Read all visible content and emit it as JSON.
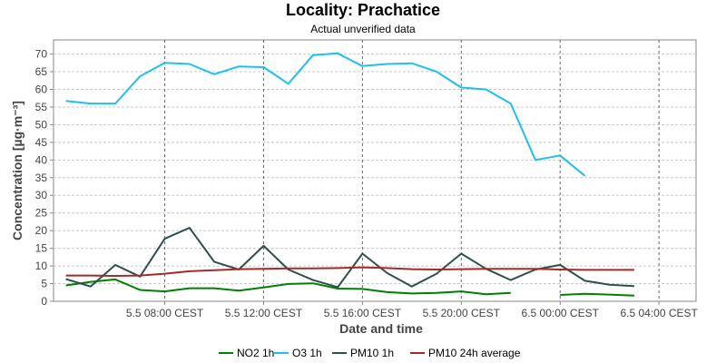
{
  "chart_data": {
    "type": "line",
    "title": "Locality: Prachatice",
    "subtitle": "Actual unverified data",
    "xlabel": "Date and time",
    "ylabel": "Concentration [µg·m⁻³]",
    "ylim": [
      0,
      74
    ],
    "y_ticks": [
      0,
      5,
      10,
      15,
      20,
      25,
      30,
      35,
      40,
      45,
      50,
      55,
      60,
      65,
      70
    ],
    "x_tick_labels": [
      "5.5 08:00 CEST",
      "5.5 12:00 CEST",
      "5.5 16:00 CEST",
      "5.5 20:00 CEST",
      "6.5 00:00 CEST",
      "6.5 04:00 CEST"
    ],
    "x_tick_hours": [
      8,
      12,
      16,
      20,
      24,
      28
    ],
    "xlim_hours": [
      3.5,
      29.5
    ],
    "grid": true,
    "legend_position": "bottom",
    "series": [
      {
        "name": "NO2 1h",
        "color": "#008000",
        "points": [
          [
            4,
            4.5
          ],
          [
            5,
            5.5
          ],
          [
            6,
            6.2
          ],
          [
            7,
            3.2
          ],
          [
            8,
            2.8
          ],
          [
            9,
            3.7
          ],
          [
            10,
            3.7
          ],
          [
            11,
            3.0
          ],
          [
            12,
            3.9
          ],
          [
            13,
            4.9
          ],
          [
            14,
            5.1
          ],
          [
            15,
            3.6
          ],
          [
            16,
            3.5
          ],
          [
            17,
            2.6
          ],
          [
            18,
            2.2
          ],
          [
            19,
            2.4
          ],
          [
            20,
            2.8
          ],
          [
            21,
            2.0
          ],
          [
            22,
            2.4
          ],
          [
            null,
            null
          ],
          [
            24,
            1.8
          ],
          [
            25,
            2.1
          ],
          [
            26,
            1.9
          ],
          [
            27,
            1.6
          ]
        ]
      },
      {
        "name": "O3 1h",
        "color": "#1ec0f0",
        "points": [
          [
            4,
            56.7
          ],
          [
            5,
            56.0
          ],
          [
            6,
            56.0
          ],
          [
            7,
            63.7
          ],
          [
            8,
            67.5
          ],
          [
            9,
            67.2
          ],
          [
            10,
            64.3
          ],
          [
            11,
            66.5
          ],
          [
            12,
            66.3
          ],
          [
            13,
            61.6
          ],
          [
            14,
            69.7
          ],
          [
            15,
            70.2
          ],
          [
            16,
            66.6
          ],
          [
            17,
            67.2
          ],
          [
            18,
            67.4
          ],
          [
            19,
            65.0
          ],
          [
            20,
            60.5
          ],
          [
            21,
            60.0
          ],
          [
            22,
            56.0
          ],
          [
            23,
            40.0
          ],
          [
            24,
            41.3
          ],
          [
            25,
            35.5
          ]
        ]
      },
      {
        "name": "PM10 1h",
        "color": "#2f4f4f",
        "points": [
          [
            4,
            6.3
          ],
          [
            5,
            4.2
          ],
          [
            6,
            10.3
          ],
          [
            7,
            7.0
          ],
          [
            8,
            17.7
          ],
          [
            9,
            20.8
          ],
          [
            10,
            11.2
          ],
          [
            11,
            9.0
          ],
          [
            12,
            15.7
          ],
          [
            13,
            9.0
          ],
          [
            14,
            6.0
          ],
          [
            15,
            4.0
          ],
          [
            16,
            13.5
          ],
          [
            17,
            8.0
          ],
          [
            18,
            4.2
          ],
          [
            19,
            7.8
          ],
          [
            20,
            13.5
          ],
          [
            21,
            9.2
          ],
          [
            22,
            6.0
          ],
          [
            23,
            9.0
          ],
          [
            24,
            10.3
          ],
          [
            25,
            5.8
          ],
          [
            26,
            4.7
          ],
          [
            27,
            4.3
          ]
        ]
      },
      {
        "name": "PM10 24h average",
        "color": "#a52a2a",
        "points": [
          [
            4,
            7.3
          ],
          [
            5,
            7.3
          ],
          [
            6,
            7.2
          ],
          [
            7,
            7.3
          ],
          [
            8,
            7.8
          ],
          [
            9,
            8.5
          ],
          [
            10,
            8.8
          ],
          [
            11,
            9.1
          ],
          [
            12,
            9.2
          ],
          [
            13,
            9.3
          ],
          [
            14,
            9.3
          ],
          [
            15,
            9.4
          ],
          [
            16,
            9.6
          ],
          [
            17,
            9.4
          ],
          [
            18,
            9.1
          ],
          [
            19,
            9.0
          ],
          [
            20,
            9.1
          ],
          [
            21,
            9.2
          ],
          [
            22,
            9.2
          ],
          [
            23,
            9.2
          ],
          [
            24,
            9.0
          ],
          [
            25,
            8.9
          ],
          [
            26,
            8.9
          ],
          [
            27,
            8.9
          ]
        ]
      }
    ]
  }
}
